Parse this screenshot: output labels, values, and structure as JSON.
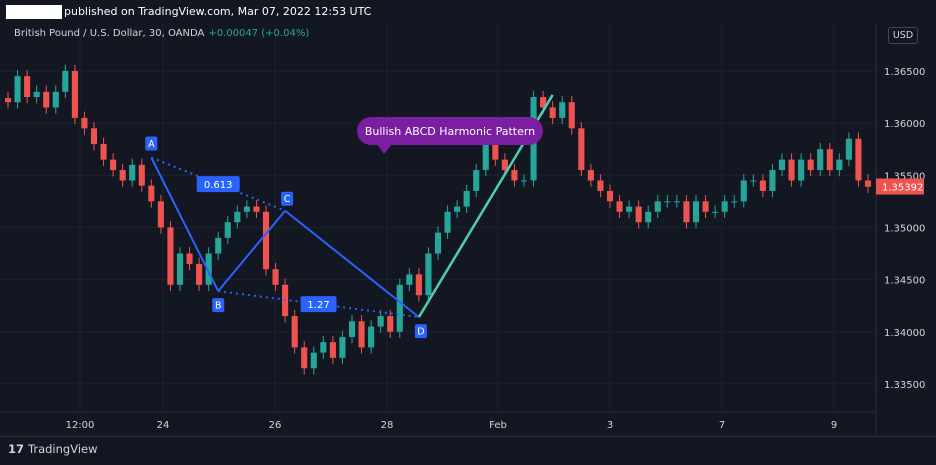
{
  "header": {
    "published_text": "published on TradingView.com, Mar 07, 2022 12:53 UTC"
  },
  "symbol": {
    "title": "British Pound / U.S. Dollar, 30, OANDA",
    "change": "+0.00047 (+0.04%)"
  },
  "currency_button": "USD",
  "footer": {
    "logo_mark": "17",
    "logo_text": "TradingView"
  },
  "colors": {
    "background": "#131722",
    "up": "#26a69a",
    "down": "#ef5350",
    "pattern_line": "#2962ff",
    "impulse_line": "#4dd0b1",
    "callout": "#7b1fa2",
    "last_price_bg": "#ef5350"
  },
  "chart_data": {
    "type": "line",
    "title": "",
    "xlabel": "",
    "ylabel": "",
    "x_ticks": [
      "12:00",
      "24",
      "26",
      "28",
      "Feb",
      "3",
      "7",
      "9"
    ],
    "y_ticks": [
      "1.36500",
      "1.36000",
      "1.35500",
      "1.35000",
      "1.34500",
      "1.34000",
      "1.33500"
    ],
    "ylim": [
      1.3325,
      1.3695
    ],
    "last_price": "1.35392",
    "grid": true,
    "series": [
      {
        "x": [
          0.0,
          1.0,
          2.0,
          3.0,
          4.0,
          5.0,
          6.0,
          7.0,
          8.0,
          9.0,
          10.0,
          11.0,
          12.0,
          13.0,
          14.0,
          15.0,
          16.0,
          17.0,
          18.0,
          19.0,
          20.0,
          21.0,
          22.0,
          23.0,
          24.0,
          25.0,
          26.0,
          27.0,
          28.0,
          29.0,
          30.0,
          31.0,
          32.0,
          33.0,
          34.0,
          35.0,
          36.0,
          37.0,
          38.0,
          39.0,
          40.0,
          41.0,
          42.0,
          43.0,
          44.0,
          45.0,
          46.0,
          47.0,
          48.0,
          49.0,
          50.0,
          51.0,
          52.0,
          53.0,
          54.0,
          55.0,
          56.0,
          57.0,
          58.0,
          59.0,
          60.0,
          61.0,
          62.0,
          63.0,
          64.0,
          65.0,
          66.0,
          67.0,
          68.0,
          69.0,
          70.0,
          71.0,
          72.0,
          73.0,
          74.0,
          75.0,
          76.0,
          77.0,
          78.0,
          79.0,
          80.0,
          81.0,
          82.0,
          83.0,
          84.0,
          85.0,
          86.0,
          87.0,
          88.0,
          89.0,
          90.0
        ],
        "values": [
          1.362,
          1.3645,
          1.3625,
          1.363,
          1.3615,
          1.363,
          1.365,
          1.3605,
          1.3595,
          1.358,
          1.3565,
          1.3555,
          1.3545,
          1.356,
          1.354,
          1.3525,
          1.35,
          1.3445,
          1.3475,
          1.3465,
          1.3445,
          1.3475,
          1.349,
          1.3505,
          1.3515,
          1.352,
          1.3515,
          1.346,
          1.3445,
          1.3415,
          1.3385,
          1.3365,
          1.338,
          1.339,
          1.3375,
          1.3395,
          1.341,
          1.3385,
          1.3405,
          1.3415,
          1.34,
          1.3445,
          1.3455,
          1.3435,
          1.3475,
          1.3495,
          1.3515,
          1.352,
          1.3535,
          1.3555,
          1.359,
          1.3565,
          1.3555,
          1.3545,
          1.3545,
          1.3625,
          1.3615,
          1.3605,
          1.362,
          1.3595,
          1.3555,
          1.3545,
          1.3535,
          1.3525,
          1.3515,
          1.352,
          1.3505,
          1.3515,
          1.3525,
          1.3525,
          1.3525,
          1.3505,
          1.3525,
          1.3515,
          1.3515,
          1.3525,
          1.3525,
          1.3545,
          1.3545,
          1.3535,
          1.3555,
          1.3565,
          1.3545,
          1.3565,
          1.3555,
          1.3575,
          1.3555,
          1.3565,
          1.3585,
          1.3545,
          1.3539
        ]
      }
    ],
    "annotations": {
      "points": [
        {
          "label": "A",
          "x": 15.0,
          "y": 1.3567
        },
        {
          "label": "B",
          "x": 22.0,
          "y": 1.3439
        },
        {
          "label": "C",
          "x": 29.0,
          "y": 1.3516
        },
        {
          "label": "D",
          "x": 43.0,
          "y": 1.3414
        }
      ],
      "ratios": [
        "0.613",
        "1.27"
      ],
      "callout": "Bullish ABCD Harmonic Pattern",
      "impulse_end": {
        "x": 57.0,
        "y": 1.3627
      }
    }
  }
}
